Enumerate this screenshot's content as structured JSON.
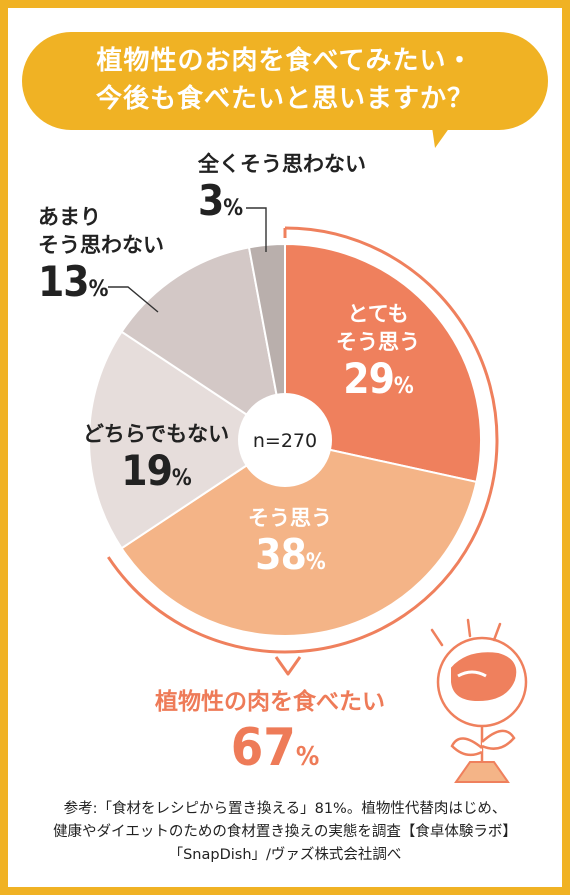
{
  "title": {
    "line1": "植物性のお肉を食べてみたい・",
    "line2": "今後も食べたいと思いますか？"
  },
  "colors": {
    "accent": "#f0b224",
    "strong_yes": "#ef805d",
    "yes": "#f4b487",
    "neutral": "#e6dddb",
    "no": "#d3c8c6",
    "strong_no": "#b9afac",
    "highlight_text": "#ee7b58"
  },
  "chart_data": {
    "type": "pie",
    "center_label": "n=270",
    "slices": [
      {
        "label": "とても\nそう思う",
        "line1": "とても",
        "line2": "そう思う",
        "value": 29
      },
      {
        "label": "そう思う",
        "value": 38
      },
      {
        "label": "どちらでもない",
        "value": 19
      },
      {
        "label": "あまり\nそう思わない",
        "line1": "あまり",
        "line2": "そう思わない",
        "value": 13
      },
      {
        "label": "全くそう思わない",
        "value": 3
      }
    ],
    "unit": "%",
    "highlight": {
      "label": "植物性の肉を食べたい",
      "value": 67
    }
  },
  "note": {
    "line1": "参考:「食材をレシピから置き換える」81%。植物性代替肉はじめ、",
    "line2": "健康やダイエットのための食材置き換えの実態を調査【食卓体験ラボ】",
    "line3": "「SnapDish」/ヴァズ株式会社調べ"
  }
}
